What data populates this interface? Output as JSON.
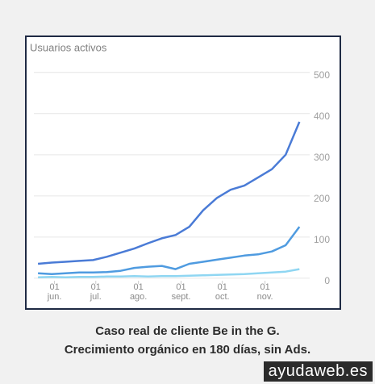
{
  "chart_data": {
    "type": "line",
    "title": "Usuarios activos",
    "x": [
      0,
      10,
      20,
      30,
      40,
      50,
      60,
      70,
      80,
      90,
      100,
      110,
      120,
      130,
      140,
      150,
      160,
      170,
      180,
      190
    ],
    "xlim": [
      -3,
      191
    ],
    "xticks": [
      {
        "value": 12,
        "label": "01 jun."
      },
      {
        "value": 42,
        "label": "01 jul."
      },
      {
        "value": 73,
        "label": "01 ago."
      },
      {
        "value": 104,
        "label": "01 sept."
      },
      {
        "value": 134,
        "label": "01 oct."
      },
      {
        "value": 165,
        "label": "01 nov."
      }
    ],
    "ylim": [
      -14,
      529
    ],
    "yticks": [
      0,
      100,
      200,
      300,
      400,
      500
    ],
    "grid": true,
    "series": [
      {
        "color": "#4a7bd6",
        "values": [
          35,
          38,
          40,
          42,
          44,
          52,
          62,
          72,
          85,
          97,
          105,
          125,
          165,
          195,
          215,
          225,
          245,
          265,
          300,
          380
        ]
      },
      {
        "color": "#4f9be0",
        "values": [
          12,
          10,
          12,
          14,
          14,
          15,
          18,
          25,
          28,
          30,
          22,
          35,
          40,
          45,
          50,
          55,
          58,
          65,
          80,
          125
        ]
      },
      {
        "color": "#8fd6f2",
        "values": [
          2,
          3,
          2,
          3,
          3,
          4,
          4,
          5,
          4,
          5,
          5,
          6,
          7,
          8,
          9,
          10,
          12,
          14,
          16,
          22
        ]
      }
    ]
  },
  "caption": [
    "Caso real de cliente Be in the G.",
    "Crecimiento orgánico en 180 días, sin Ads."
  ],
  "watermark": "ayudaweb.es"
}
